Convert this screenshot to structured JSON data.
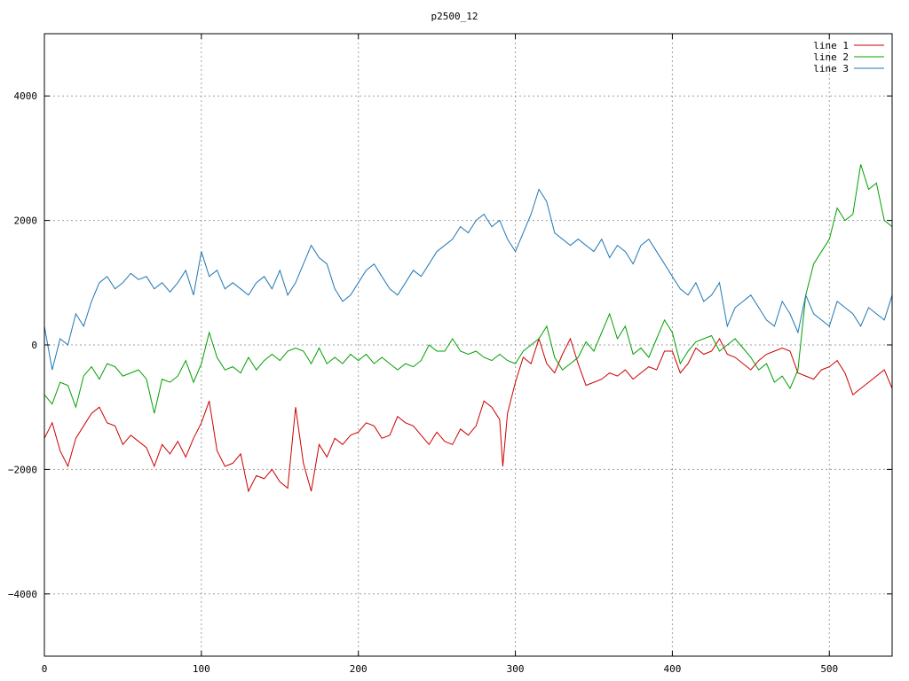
{
  "chart_data": {
    "type": "line",
    "title": "p2500_12",
    "xlabel": "",
    "ylabel": "",
    "xlim": [
      0,
      540
    ],
    "ylim": [
      -5000,
      5000
    ],
    "xticks": [
      0,
      100,
      200,
      300,
      400,
      500
    ],
    "yticks": [
      -4000,
      -2000,
      0,
      2000,
      4000
    ],
    "ytick_labels": [
      "−4000",
      "−2000",
      "0",
      "2000",
      "4000"
    ],
    "grid": true,
    "legend_position": "top-right",
    "series": [
      {
        "name": "line 1",
        "color": "#cc0000",
        "x": [
          0,
          5,
          10,
          15,
          20,
          25,
          30,
          35,
          40,
          45,
          50,
          55,
          60,
          65,
          70,
          75,
          80,
          85,
          90,
          95,
          100,
          105,
          110,
          115,
          120,
          125,
          130,
          135,
          140,
          145,
          150,
          155,
          160,
          165,
          170,
          175,
          180,
          185,
          190,
          195,
          200,
          205,
          210,
          215,
          220,
          225,
          230,
          235,
          240,
          245,
          250,
          255,
          260,
          265,
          270,
          275,
          280,
          285,
          290,
          292,
          295,
          300,
          305,
          310,
          315,
          320,
          325,
          330,
          335,
          340,
          345,
          350,
          355,
          360,
          365,
          370,
          375,
          380,
          385,
          390,
          395,
          400,
          405,
          410,
          415,
          420,
          425,
          430,
          435,
          440,
          445,
          450,
          455,
          460,
          465,
          470,
          475,
          480,
          485,
          490,
          495,
          500,
          505,
          510,
          515,
          520,
          525,
          530,
          535,
          540
        ],
        "y": [
          -1500,
          -1250,
          -1700,
          -1950,
          -1500,
          -1300,
          -1100,
          -1000,
          -1250,
          -1300,
          -1600,
          -1450,
          -1550,
          -1650,
          -1950,
          -1600,
          -1750,
          -1550,
          -1800,
          -1500,
          -1250,
          -900,
          -1700,
          -1950,
          -1900,
          -1750,
          -2350,
          -2100,
          -2150,
          -2000,
          -2200,
          -2300,
          -1000,
          -1900,
          -2350,
          -1600,
          -1800,
          -1500,
          -1600,
          -1450,
          -1400,
          -1250,
          -1300,
          -1500,
          -1450,
          -1150,
          -1250,
          -1300,
          -1450,
          -1600,
          -1400,
          -1550,
          -1600,
          -1350,
          -1450,
          -1300,
          -900,
          -1000,
          -1200,
          -1950,
          -1100,
          -600,
          -200,
          -300,
          100,
          -300,
          -450,
          -150,
          100,
          -300,
          -650,
          -600,
          -550,
          -450,
          -500,
          -400,
          -550,
          -450,
          -350,
          -400,
          -100,
          -100,
          -450,
          -300,
          -50,
          -150,
          -100,
          100,
          -150,
          -200,
          -300,
          -400,
          -250,
          -150,
          -100,
          -50,
          -100,
          -450,
          -500,
          -550,
          -400,
          -350,
          -250,
          -450,
          -800,
          -700,
          -600,
          -500,
          -400,
          -700
        ]
      },
      {
        "name": "line 2",
        "color": "#00a000",
        "x": [
          0,
          5,
          10,
          15,
          20,
          25,
          30,
          35,
          40,
          45,
          50,
          55,
          60,
          65,
          70,
          75,
          80,
          85,
          90,
          95,
          100,
          105,
          110,
          115,
          120,
          125,
          130,
          135,
          140,
          145,
          150,
          155,
          160,
          165,
          170,
          175,
          180,
          185,
          190,
          195,
          200,
          205,
          210,
          215,
          220,
          225,
          230,
          235,
          240,
          245,
          250,
          255,
          260,
          265,
          270,
          275,
          280,
          285,
          290,
          295,
          300,
          305,
          310,
          315,
          320,
          325,
          330,
          335,
          340,
          345,
          350,
          355,
          360,
          365,
          370,
          375,
          380,
          385,
          390,
          395,
          400,
          405,
          410,
          415,
          420,
          425,
          430,
          435,
          440,
          445,
          450,
          455,
          460,
          465,
          470,
          475,
          480,
          485,
          490,
          495,
          500,
          505,
          510,
          515,
          520,
          525,
          530,
          535,
          540
        ],
        "y": [
          -800,
          -950,
          -600,
          -650,
          -1000,
          -500,
          -350,
          -550,
          -300,
          -350,
          -500,
          -450,
          -400,
          -550,
          -1100,
          -550,
          -600,
          -500,
          -250,
          -600,
          -300,
          200,
          -200,
          -400,
          -350,
          -450,
          -200,
          -400,
          -250,
          -150,
          -250,
          -100,
          -50,
          -100,
          -300,
          -50,
          -300,
          -200,
          -300,
          -150,
          -250,
          -150,
          -300,
          -200,
          -300,
          -400,
          -300,
          -350,
          -250,
          0,
          -100,
          -100,
          100,
          -100,
          -150,
          -100,
          -200,
          -250,
          -150,
          -250,
          -300,
          -100,
          0,
          100,
          300,
          -200,
          -400,
          -300,
          -200,
          50,
          -100,
          200,
          500,
          100,
          300,
          -150,
          -50,
          -200,
          100,
          400,
          200,
          -300,
          -100,
          50,
          100,
          150,
          -100,
          0,
          100,
          -50,
          -200,
          -400,
          -300,
          -600,
          -500,
          -700,
          -400,
          800,
          1300,
          1500,
          1700,
          2200,
          2000,
          2100,
          2900,
          2500,
          2600,
          2000,
          1900
        ]
      },
      {
        "name": "line 3",
        "color": "#1f77b4",
        "x": [
          0,
          5,
          10,
          15,
          20,
          25,
          30,
          35,
          40,
          45,
          50,
          55,
          60,
          65,
          70,
          75,
          80,
          85,
          90,
          95,
          100,
          105,
          110,
          115,
          120,
          125,
          130,
          135,
          140,
          145,
          150,
          155,
          160,
          165,
          170,
          175,
          180,
          185,
          190,
          195,
          200,
          205,
          210,
          215,
          220,
          225,
          230,
          235,
          240,
          245,
          250,
          255,
          260,
          265,
          270,
          275,
          280,
          285,
          290,
          295,
          300,
          305,
          310,
          315,
          320,
          325,
          330,
          335,
          340,
          345,
          350,
          355,
          360,
          365,
          370,
          375,
          380,
          385,
          390,
          395,
          400,
          405,
          410,
          415,
          420,
          425,
          430,
          435,
          440,
          445,
          450,
          455,
          460,
          465,
          470,
          475,
          480,
          485,
          490,
          495,
          500,
          505,
          510,
          515,
          520,
          525,
          530,
          535,
          540
        ],
        "y": [
          300,
          -400,
          100,
          0,
          500,
          300,
          700,
          1000,
          1100,
          900,
          1000,
          1150,
          1050,
          1100,
          900,
          1000,
          850,
          1000,
          1200,
          800,
          1500,
          1100,
          1200,
          900,
          1000,
          900,
          800,
          1000,
          1100,
          900,
          1200,
          800,
          1000,
          1300,
          1600,
          1400,
          1300,
          900,
          700,
          800,
          1000,
          1200,
          1300,
          1100,
          900,
          800,
          1000,
          1200,
          1100,
          1300,
          1500,
          1600,
          1700,
          1900,
          1800,
          2000,
          2100,
          1900,
          2000,
          1700,
          1500,
          1800,
          2100,
          2500,
          2300,
          1800,
          1700,
          1600,
          1700,
          1600,
          1500,
          1700,
          1400,
          1600,
          1500,
          1300,
          1600,
          1700,
          1500,
          1300,
          1100,
          900,
          800,
          1000,
          700,
          800,
          1000,
          300,
          600,
          700,
          800,
          600,
          400,
          300,
          700,
          500,
          200,
          800,
          500,
          400,
          300,
          700,
          600,
          500,
          300,
          600,
          500,
          400,
          800
        ]
      }
    ]
  }
}
